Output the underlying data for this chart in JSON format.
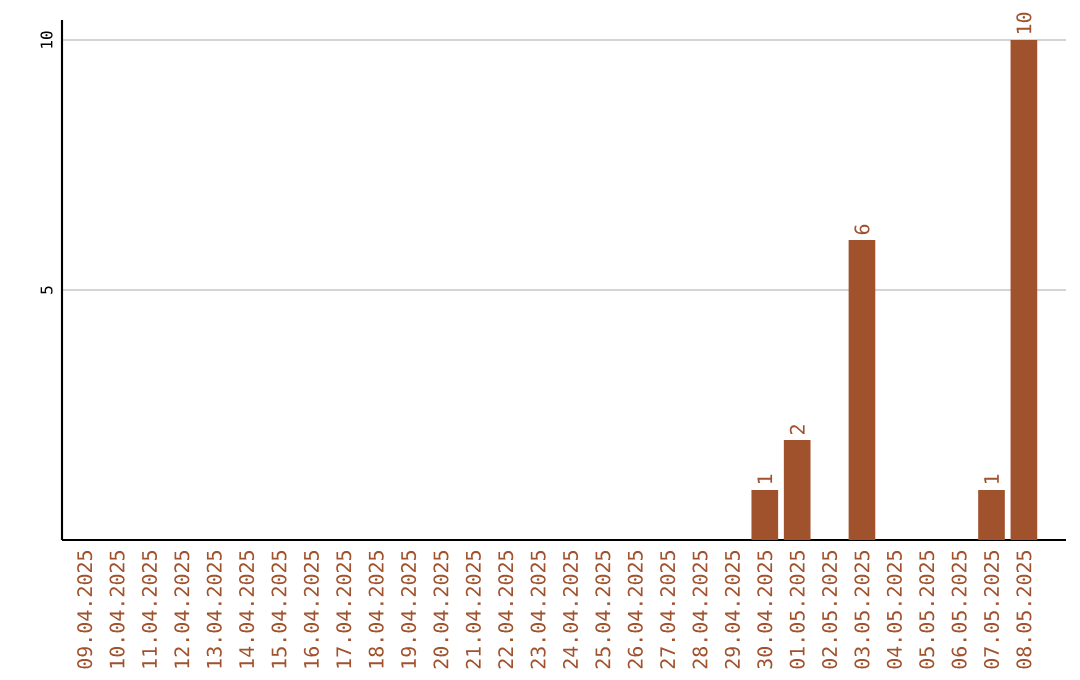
{
  "chart_data": {
    "type": "bar",
    "categories": [
      "09.04.2025",
      "10.04.2025",
      "11.04.2025",
      "12.04.2025",
      "13.04.2025",
      "14.04.2025",
      "15.04.2025",
      "16.04.2025",
      "17.04.2025",
      "18.04.2025",
      "19.04.2025",
      "20.04.2025",
      "21.04.2025",
      "22.04.2025",
      "23.04.2025",
      "24.04.2025",
      "25.04.2025",
      "26.04.2025",
      "27.04.2025",
      "28.04.2025",
      "29.04.2025",
      "30.04.2025",
      "01.05.2025",
      "02.05.2025",
      "03.05.2025",
      "04.05.2025",
      "05.05.2025",
      "06.05.2025",
      "07.05.2025",
      "08.05.2025"
    ],
    "values": [
      0,
      0,
      0,
      0,
      0,
      0,
      0,
      0,
      0,
      0,
      0,
      0,
      0,
      0,
      0,
      0,
      0,
      0,
      0,
      0,
      0,
      1,
      2,
      0,
      6,
      0,
      0,
      0,
      1,
      10
    ],
    "value_labels": [
      null,
      null,
      null,
      null,
      null,
      null,
      null,
      null,
      null,
      null,
      null,
      null,
      null,
      null,
      null,
      null,
      null,
      null,
      null,
      null,
      null,
      "1",
      "2",
      null,
      "6",
      null,
      null,
      null,
      "1",
      "10"
    ],
    "color": "#a0522d",
    "ylim": [
      0,
      10.4
    ],
    "yticks": [
      5,
      10
    ],
    "grid": "y"
  }
}
